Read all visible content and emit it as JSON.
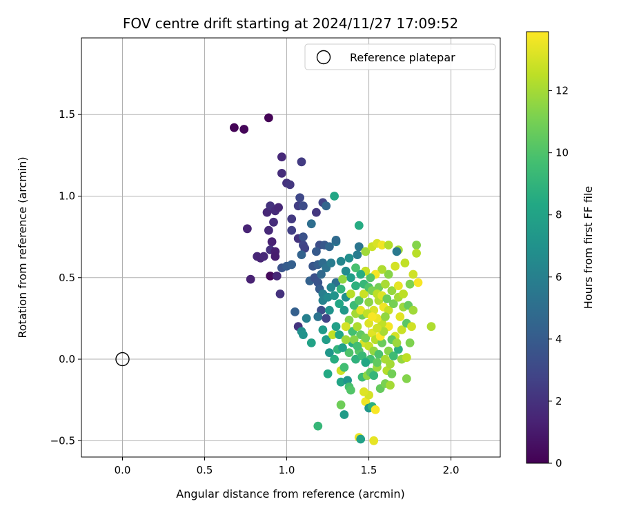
{
  "chart_data": {
    "type": "scatter",
    "title": "FOV centre drift starting at 2024/11/27 17:09:52",
    "xlabel": "Angular distance from reference (arcmin)",
    "ylabel": "Rotation from reference (arcmin)",
    "xlim": [
      -0.25,
      2.3
    ],
    "ylim": [
      -0.6,
      1.97
    ],
    "xticks": [
      0.0,
      0.5,
      1.0,
      1.5,
      2.0
    ],
    "xtick_labels": [
      "0.0",
      "0.5",
      "1.0",
      "1.5",
      "2.0"
    ],
    "yticks": [
      -0.5,
      0.0,
      0.5,
      1.0,
      1.5
    ],
    "ytick_labels": [
      "−0.5",
      "0.0",
      "0.5",
      "1.0",
      "1.5"
    ],
    "grid": true,
    "legend": {
      "placement": "top-right",
      "entries": [
        "Reference platepar"
      ]
    },
    "reference_point": {
      "x": 0.0,
      "y": 0.0,
      "label": "Reference platepar"
    },
    "colorbar": {
      "label": "Hours from first FF file",
      "colormap": "viridis",
      "range": [
        0,
        13.9
      ],
      "ticks": [
        0,
        2,
        4,
        6,
        8,
        10,
        12
      ],
      "tick_labels": [
        "0",
        "2",
        "4",
        "6",
        "8",
        "10",
        "12"
      ]
    },
    "points": [
      {
        "x": 0.68,
        "y": 1.42,
        "h": 0.1
      },
      {
        "x": 0.74,
        "y": 1.41,
        "h": 0.2
      },
      {
        "x": 0.89,
        "y": 1.48,
        "h": 0.1
      },
      {
        "x": 0.97,
        "y": 1.24,
        "h": 1.6
      },
      {
        "x": 0.97,
        "y": 1.14,
        "h": 1.8
      },
      {
        "x": 1.0,
        "y": 1.08,
        "h": 2.0
      },
      {
        "x": 1.02,
        "y": 1.07,
        "h": 2.2
      },
      {
        "x": 1.09,
        "y": 1.21,
        "h": 2.4
      },
      {
        "x": 0.76,
        "y": 0.8,
        "h": 1.4
      },
      {
        "x": 0.88,
        "y": 0.9,
        "h": 1.5
      },
      {
        "x": 0.9,
        "y": 0.94,
        "h": 2.0
      },
      {
        "x": 0.92,
        "y": 0.84,
        "h": 1.8
      },
      {
        "x": 0.93,
        "y": 0.91,
        "h": 1.7
      },
      {
        "x": 0.95,
        "y": 0.93,
        "h": 1.5
      },
      {
        "x": 0.89,
        "y": 0.79,
        "h": 1.6
      },
      {
        "x": 0.91,
        "y": 0.72,
        "h": 1.3
      },
      {
        "x": 0.9,
        "y": 0.67,
        "h": 1.9
      },
      {
        "x": 0.93,
        "y": 0.66,
        "h": 1.2
      },
      {
        "x": 0.93,
        "y": 0.63,
        "h": 1.1
      },
      {
        "x": 0.82,
        "y": 0.63,
        "h": 1.5
      },
      {
        "x": 0.84,
        "y": 0.62,
        "h": 1.4
      },
      {
        "x": 0.86,
        "y": 0.63,
        "h": 1.6
      },
      {
        "x": 0.78,
        "y": 0.49,
        "h": 1.3
      },
      {
        "x": 0.9,
        "y": 0.51,
        "h": 0.3
      },
      {
        "x": 0.94,
        "y": 0.51,
        "h": 1.5
      },
      {
        "x": 0.96,
        "y": 0.4,
        "h": 2.0
      },
      {
        "x": 0.97,
        "y": 0.56,
        "h": 3.6
      },
      {
        "x": 1.0,
        "y": 0.57,
        "h": 4.0
      },
      {
        "x": 1.03,
        "y": 0.58,
        "h": 4.2
      },
      {
        "x": 1.03,
        "y": 0.79,
        "h": 2.6
      },
      {
        "x": 1.03,
        "y": 0.86,
        "h": 2.3
      },
      {
        "x": 1.07,
        "y": 0.94,
        "h": 2.5
      },
      {
        "x": 1.08,
        "y": 0.99,
        "h": 3.0
      },
      {
        "x": 1.1,
        "y": 0.94,
        "h": 3.2
      },
      {
        "x": 1.07,
        "y": 0.74,
        "h": 2.1
      },
      {
        "x": 1.1,
        "y": 0.75,
        "h": 3.5
      },
      {
        "x": 1.1,
        "y": 0.7,
        "h": 2.9
      },
      {
        "x": 1.11,
        "y": 0.68,
        "h": 2.7
      },
      {
        "x": 1.09,
        "y": 0.64,
        "h": 4.4
      },
      {
        "x": 1.15,
        "y": 0.83,
        "h": 5.0
      },
      {
        "x": 1.18,
        "y": 0.9,
        "h": 2.2
      },
      {
        "x": 1.22,
        "y": 0.96,
        "h": 2.8
      },
      {
        "x": 1.24,
        "y": 0.94,
        "h": 4.5
      },
      {
        "x": 1.29,
        "y": 1.0,
        "h": 8.2
      },
      {
        "x": 1.2,
        "y": 0.7,
        "h": 3.3
      },
      {
        "x": 1.23,
        "y": 0.7,
        "h": 3.8
      },
      {
        "x": 1.18,
        "y": 0.66,
        "h": 3.9
      },
      {
        "x": 1.26,
        "y": 0.69,
        "h": 4.6
      },
      {
        "x": 1.3,
        "y": 0.72,
        "h": 5.5
      },
      {
        "x": 1.3,
        "y": 0.73,
        "h": 4.8
      },
      {
        "x": 1.16,
        "y": 0.57,
        "h": 3.7
      },
      {
        "x": 1.19,
        "y": 0.58,
        "h": 4.1
      },
      {
        "x": 1.22,
        "y": 0.59,
        "h": 4.9
      },
      {
        "x": 1.24,
        "y": 0.56,
        "h": 5.2
      },
      {
        "x": 1.27,
        "y": 0.59,
        "h": 5.7
      },
      {
        "x": 1.14,
        "y": 0.48,
        "h": 4.3
      },
      {
        "x": 1.17,
        "y": 0.5,
        "h": 3.4
      },
      {
        "x": 1.19,
        "y": 0.47,
        "h": 3.6
      },
      {
        "x": 1.21,
        "y": 0.52,
        "h": 4.7
      },
      {
        "x": 1.2,
        "y": 0.43,
        "h": 4.0
      },
      {
        "x": 1.22,
        "y": 0.4,
        "h": 5.9
      },
      {
        "x": 1.22,
        "y": 0.36,
        "h": 6.1
      },
      {
        "x": 1.25,
        "y": 0.38,
        "h": 6.5
      },
      {
        "x": 1.21,
        "y": 0.3,
        "h": 3.3
      },
      {
        "x": 1.19,
        "y": 0.26,
        "h": 5.3
      },
      {
        "x": 1.26,
        "y": 0.3,
        "h": 7.0
      },
      {
        "x": 1.24,
        "y": 0.25,
        "h": 2.8
      },
      {
        "x": 1.05,
        "y": 0.29,
        "h": 4.2
      },
      {
        "x": 1.07,
        "y": 0.2,
        "h": 2.1
      },
      {
        "x": 1.12,
        "y": 0.25,
        "h": 6.0
      },
      {
        "x": 1.09,
        "y": 0.17,
        "h": 6.8
      },
      {
        "x": 1.1,
        "y": 0.15,
        "h": 7.1
      },
      {
        "x": 1.15,
        "y": 0.1,
        "h": 8.0
      },
      {
        "x": 1.22,
        "y": 0.18,
        "h": 7.5
      },
      {
        "x": 1.24,
        "y": 0.12,
        "h": 7.7
      },
      {
        "x": 1.28,
        "y": 0.15,
        "h": 12.6
      },
      {
        "x": 1.3,
        "y": 0.2,
        "h": 7.8
      },
      {
        "x": 1.32,
        "y": 0.15,
        "h": 8.3
      },
      {
        "x": 1.26,
        "y": 0.04,
        "h": 7.3
      },
      {
        "x": 1.29,
        "y": 0.0,
        "h": 8.6
      },
      {
        "x": 1.31,
        "y": 0.06,
        "h": 9.0
      },
      {
        "x": 1.25,
        "y": -0.09,
        "h": 8.4
      },
      {
        "x": 1.33,
        "y": -0.07,
        "h": 12.9
      },
      {
        "x": 1.33,
        "y": -0.14,
        "h": 8.1
      },
      {
        "x": 1.37,
        "y": -0.13,
        "h": 7.2
      },
      {
        "x": 1.38,
        "y": -0.17,
        "h": 9.8
      },
      {
        "x": 1.39,
        "y": -0.19,
        "h": 10.1
      },
      {
        "x": 1.35,
        "y": -0.05,
        "h": 9.6
      },
      {
        "x": 1.33,
        "y": -0.28,
        "h": 10.8
      },
      {
        "x": 1.35,
        "y": -0.34,
        "h": 7.6
      },
      {
        "x": 1.19,
        "y": -0.41,
        "h": 9.2
      },
      {
        "x": 1.44,
        "y": -0.48,
        "h": 13.5
      },
      {
        "x": 1.45,
        "y": -0.49,
        "h": 7.9
      },
      {
        "x": 1.53,
        "y": -0.5,
        "h": 13.4
      },
      {
        "x": 1.48,
        "y": -0.26,
        "h": 13.6
      },
      {
        "x": 1.5,
        "y": -0.3,
        "h": 7.3
      },
      {
        "x": 1.52,
        "y": -0.29,
        "h": 8.8
      },
      {
        "x": 1.54,
        "y": -0.31,
        "h": 13.8
      },
      {
        "x": 1.5,
        "y": -0.22,
        "h": 13.0
      },
      {
        "x": 1.47,
        "y": -0.2,
        "h": 13.2
      },
      {
        "x": 1.46,
        "y": -0.11,
        "h": 9.4
      },
      {
        "x": 1.49,
        "y": -0.1,
        "h": 11.5
      },
      {
        "x": 1.51,
        "y": -0.08,
        "h": 10.4
      },
      {
        "x": 1.53,
        "y": -0.1,
        "h": 9.1
      },
      {
        "x": 1.55,
        "y": -0.05,
        "h": 11.8
      },
      {
        "x": 1.57,
        "y": -0.18,
        "h": 10.6
      },
      {
        "x": 1.6,
        "y": -0.15,
        "h": 11.1
      },
      {
        "x": 1.63,
        "y": -0.16,
        "h": 12.0
      },
      {
        "x": 1.61,
        "y": -0.07,
        "h": 12.3
      },
      {
        "x": 1.64,
        "y": -0.09,
        "h": 10.9
      },
      {
        "x": 1.73,
        "y": -0.12,
        "h": 11.3
      },
      {
        "x": 1.42,
        "y": 0.0,
        "h": 8.9
      },
      {
        "x": 1.44,
        "y": 0.05,
        "h": 10.2
      },
      {
        "x": 1.46,
        "y": 0.02,
        "h": 9.3
      },
      {
        "x": 1.4,
        "y": 0.1,
        "h": 8.5
      },
      {
        "x": 1.38,
        "y": 0.04,
        "h": 10.0
      },
      {
        "x": 1.36,
        "y": 0.12,
        "h": 11.9
      },
      {
        "x": 1.4,
        "y": 0.17,
        "h": 9.7
      },
      {
        "x": 1.43,
        "y": 0.2,
        "h": 12.2
      },
      {
        "x": 1.45,
        "y": 0.15,
        "h": 10.5
      },
      {
        "x": 1.47,
        "y": 0.1,
        "h": 13.1
      },
      {
        "x": 1.48,
        "y": 0.13,
        "h": 11.0
      },
      {
        "x": 1.5,
        "y": 0.08,
        "h": 12.7
      },
      {
        "x": 1.52,
        "y": 0.16,
        "h": 13.3
      },
      {
        "x": 1.54,
        "y": 0.12,
        "h": 12.4
      },
      {
        "x": 1.53,
        "y": 0.05,
        "h": 11.6
      },
      {
        "x": 1.56,
        "y": 0.03,
        "h": 9.9
      },
      {
        "x": 1.58,
        "y": 0.1,
        "h": 10.7
      },
      {
        "x": 1.6,
        "y": 0.0,
        "h": 12.1
      },
      {
        "x": 1.62,
        "y": 0.05,
        "h": 11.4
      },
      {
        "x": 1.65,
        "y": 0.02,
        "h": 9.5
      },
      {
        "x": 1.68,
        "y": 0.06,
        "h": 8.7
      },
      {
        "x": 1.7,
        "y": 0.0,
        "h": 11.7
      },
      {
        "x": 1.73,
        "y": 0.01,
        "h": 12.5
      },
      {
        "x": 1.75,
        "y": 0.1,
        "h": 11.2
      },
      {
        "x": 1.66,
        "y": 0.14,
        "h": 13.0
      },
      {
        "x": 1.7,
        "y": 0.18,
        "h": 12.8
      },
      {
        "x": 1.73,
        "y": 0.22,
        "h": 10.3
      },
      {
        "x": 1.76,
        "y": 0.2,
        "h": 12.9
      },
      {
        "x": 1.88,
        "y": 0.2,
        "h": 12.2
      },
      {
        "x": 1.62,
        "y": 0.2,
        "h": 13.7
      },
      {
        "x": 1.58,
        "y": 0.22,
        "h": 12.6
      },
      {
        "x": 1.55,
        "y": 0.25,
        "h": 13.5
      },
      {
        "x": 1.5,
        "y": 0.22,
        "h": 13.2
      },
      {
        "x": 1.46,
        "y": 0.27,
        "h": 10.8
      },
      {
        "x": 1.42,
        "y": 0.28,
        "h": 12.0
      },
      {
        "x": 1.38,
        "y": 0.24,
        "h": 11.3
      },
      {
        "x": 1.35,
        "y": 0.3,
        "h": 7.4
      },
      {
        "x": 1.32,
        "y": 0.34,
        "h": 8.2
      },
      {
        "x": 1.36,
        "y": 0.38,
        "h": 6.9
      },
      {
        "x": 1.39,
        "y": 0.4,
        "h": 12.4
      },
      {
        "x": 1.41,
        "y": 0.33,
        "h": 9.4
      },
      {
        "x": 1.44,
        "y": 0.36,
        "h": 10.1
      },
      {
        "x": 1.47,
        "y": 0.4,
        "h": 12.8
      },
      {
        "x": 1.5,
        "y": 0.35,
        "h": 11.5
      },
      {
        "x": 1.53,
        "y": 0.3,
        "h": 13.1
      },
      {
        "x": 1.56,
        "y": 0.36,
        "h": 12.3
      },
      {
        "x": 1.59,
        "y": 0.32,
        "h": 13.6
      },
      {
        "x": 1.62,
        "y": 0.3,
        "h": 12.7
      },
      {
        "x": 1.65,
        "y": 0.34,
        "h": 11.0
      },
      {
        "x": 1.68,
        "y": 0.38,
        "h": 12.0
      },
      {
        "x": 1.71,
        "y": 0.32,
        "h": 11.8
      },
      {
        "x": 1.74,
        "y": 0.33,
        "h": 10.6
      },
      {
        "x": 1.77,
        "y": 0.3,
        "h": 11.9
      },
      {
        "x": 1.69,
        "y": 0.26,
        "h": 13.3
      },
      {
        "x": 1.56,
        "y": 0.44,
        "h": 10.9
      },
      {
        "x": 1.6,
        "y": 0.46,
        "h": 12.1
      },
      {
        "x": 1.64,
        "y": 0.42,
        "h": 11.7
      },
      {
        "x": 1.68,
        "y": 0.45,
        "h": 13.4
      },
      {
        "x": 1.71,
        "y": 0.4,
        "h": 12.5
      },
      {
        "x": 1.75,
        "y": 0.46,
        "h": 11.2
      },
      {
        "x": 1.8,
        "y": 0.47,
        "h": 13.8
      },
      {
        "x": 1.77,
        "y": 0.52,
        "h": 12.9
      },
      {
        "x": 1.72,
        "y": 0.59,
        "h": 12.6
      },
      {
        "x": 1.66,
        "y": 0.57,
        "h": 13.0
      },
      {
        "x": 1.62,
        "y": 0.52,
        "h": 11.4
      },
      {
        "x": 1.58,
        "y": 0.55,
        "h": 12.2
      },
      {
        "x": 1.54,
        "y": 0.52,
        "h": 13.7
      },
      {
        "x": 1.51,
        "y": 0.5,
        "h": 10.2
      },
      {
        "x": 1.48,
        "y": 0.54,
        "h": 12.7
      },
      {
        "x": 1.45,
        "y": 0.52,
        "h": 8.6
      },
      {
        "x": 1.42,
        "y": 0.56,
        "h": 9.8
      },
      {
        "x": 1.39,
        "y": 0.5,
        "h": 7.8
      },
      {
        "x": 1.36,
        "y": 0.54,
        "h": 6.6
      },
      {
        "x": 1.33,
        "y": 0.6,
        "h": 6.3
      },
      {
        "x": 1.38,
        "y": 0.62,
        "h": 6.8
      },
      {
        "x": 1.43,
        "y": 0.64,
        "h": 5.8
      },
      {
        "x": 1.44,
        "y": 0.69,
        "h": 5.4
      },
      {
        "x": 1.48,
        "y": 0.66,
        "h": 11.9
      },
      {
        "x": 1.52,
        "y": 0.69,
        "h": 12.8
      },
      {
        "x": 1.55,
        "y": 0.71,
        "h": 13.1
      },
      {
        "x": 1.58,
        "y": 0.7,
        "h": 13.6
      },
      {
        "x": 1.62,
        "y": 0.7,
        "h": 12.3
      },
      {
        "x": 1.68,
        "y": 0.67,
        "h": 12.0
      },
      {
        "x": 1.79,
        "y": 0.7,
        "h": 11.3
      },
      {
        "x": 1.79,
        "y": 0.65,
        "h": 12.4
      },
      {
        "x": 1.67,
        "y": 0.66,
        "h": 5.6
      },
      {
        "x": 1.44,
        "y": 0.82,
        "h": 8.5
      },
      {
        "x": 1.3,
        "y": 0.47,
        "h": 5.1
      },
      {
        "x": 1.27,
        "y": 0.44,
        "h": 6.4
      },
      {
        "x": 1.29,
        "y": 0.39,
        "h": 7.1
      },
      {
        "x": 1.33,
        "y": 0.43,
        "h": 9.0
      },
      {
        "x": 1.34,
        "y": 0.49,
        "h": 11.6
      },
      {
        "x": 1.47,
        "y": 0.46,
        "h": 9.2
      },
      {
        "x": 1.5,
        "y": 0.44,
        "h": 10.0
      },
      {
        "x": 1.52,
        "y": 0.42,
        "h": 11.1
      },
      {
        "x": 1.55,
        "y": 0.4,
        "h": 12.5
      },
      {
        "x": 1.58,
        "y": 0.39,
        "h": 13.2
      },
      {
        "x": 1.61,
        "y": 0.37,
        "h": 10.7
      },
      {
        "x": 1.42,
        "y": 0.45,
        "h": 8.8
      },
      {
        "x": 1.41,
        "y": 0.12,
        "h": 11.4
      },
      {
        "x": 1.43,
        "y": 0.08,
        "h": 9.6
      },
      {
        "x": 1.57,
        "y": 0.14,
        "h": 13.9
      },
      {
        "x": 1.59,
        "y": 0.17,
        "h": 12.1
      },
      {
        "x": 1.64,
        "y": 0.12,
        "h": 10.4
      },
      {
        "x": 1.67,
        "y": 0.1,
        "h": 11.8
      },
      {
        "x": 1.51,
        "y": 0.0,
        "h": 9.7
      },
      {
        "x": 1.48,
        "y": -0.02,
        "h": 8.3
      },
      {
        "x": 1.55,
        "y": -0.02,
        "h": 10.5
      },
      {
        "x": 1.63,
        "y": -0.03,
        "h": 12.0
      },
      {
        "x": 1.36,
        "y": 0.2,
        "h": 13.0
      },
      {
        "x": 1.34,
        "y": 0.07,
        "h": 7.9
      },
      {
        "x": 1.45,
        "y": 0.3,
        "h": 13.4
      },
      {
        "x": 1.49,
        "y": 0.28,
        "h": 12.6
      },
      {
        "x": 1.52,
        "y": 0.26,
        "h": 13.8
      },
      {
        "x": 1.55,
        "y": 0.19,
        "h": 12.9
      },
      {
        "x": 1.6,
        "y": 0.26,
        "h": 11.6
      }
    ]
  }
}
